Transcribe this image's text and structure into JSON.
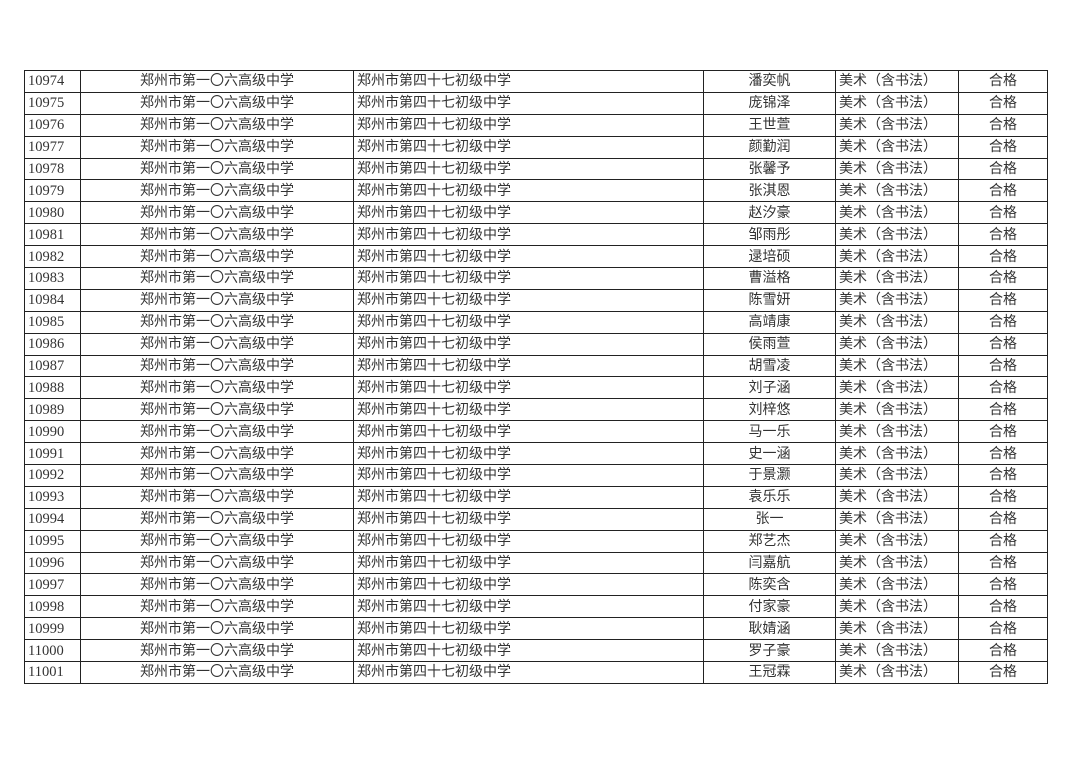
{
  "rows": [
    {
      "id": "10974",
      "school": "郑州市第一〇六高级中学",
      "origin": "郑州市第四十七初级中学",
      "name": "潘奕帆",
      "subject": "美术（含书法）",
      "result": "合格"
    },
    {
      "id": "10975",
      "school": "郑州市第一〇六高级中学",
      "origin": "郑州市第四十七初级中学",
      "name": "庞锦泽",
      "subject": "美术（含书法）",
      "result": "合格"
    },
    {
      "id": "10976",
      "school": "郑州市第一〇六高级中学",
      "origin": "郑州市第四十七初级中学",
      "name": "王世萱",
      "subject": "美术（含书法）",
      "result": "合格"
    },
    {
      "id": "10977",
      "school": "郑州市第一〇六高级中学",
      "origin": "郑州市第四十七初级中学",
      "name": "颜勤润",
      "subject": "美术（含书法）",
      "result": "合格"
    },
    {
      "id": "10978",
      "school": "郑州市第一〇六高级中学",
      "origin": "郑州市第四十七初级中学",
      "name": "张馨予",
      "subject": "美术（含书法）",
      "result": "合格"
    },
    {
      "id": "10979",
      "school": "郑州市第一〇六高级中学",
      "origin": "郑州市第四十七初级中学",
      "name": "张淇恩",
      "subject": "美术（含书法）",
      "result": "合格"
    },
    {
      "id": "10980",
      "school": "郑州市第一〇六高级中学",
      "origin": "郑州市第四十七初级中学",
      "name": "赵汐豪",
      "subject": "美术（含书法）",
      "result": "合格"
    },
    {
      "id": "10981",
      "school": "郑州市第一〇六高级中学",
      "origin": "郑州市第四十七初级中学",
      "name": "邹雨彤",
      "subject": "美术（含书法）",
      "result": "合格"
    },
    {
      "id": "10982",
      "school": "郑州市第一〇六高级中学",
      "origin": "郑州市第四十七初级中学",
      "name": "逯培硕",
      "subject": "美术（含书法）",
      "result": "合格"
    },
    {
      "id": "10983",
      "school": "郑州市第一〇六高级中学",
      "origin": "郑州市第四十七初级中学",
      "name": "曹溢格",
      "subject": "美术（含书法）",
      "result": "合格"
    },
    {
      "id": "10984",
      "school": "郑州市第一〇六高级中学",
      "origin": "郑州市第四十七初级中学",
      "name": "陈雪妍",
      "subject": "美术（含书法）",
      "result": "合格"
    },
    {
      "id": "10985",
      "school": "郑州市第一〇六高级中学",
      "origin": "郑州市第四十七初级中学",
      "name": "高靖康",
      "subject": "美术（含书法）",
      "result": "合格"
    },
    {
      "id": "10986",
      "school": "郑州市第一〇六高级中学",
      "origin": "郑州市第四十七初级中学",
      "name": "侯雨萱",
      "subject": "美术（含书法）",
      "result": "合格"
    },
    {
      "id": "10987",
      "school": "郑州市第一〇六高级中学",
      "origin": "郑州市第四十七初级中学",
      "name": "胡雪凌",
      "subject": "美术（含书法）",
      "result": "合格"
    },
    {
      "id": "10988",
      "school": "郑州市第一〇六高级中学",
      "origin": "郑州市第四十七初级中学",
      "name": "刘子涵",
      "subject": "美术（含书法）",
      "result": "合格"
    },
    {
      "id": "10989",
      "school": "郑州市第一〇六高级中学",
      "origin": "郑州市第四十七初级中学",
      "name": "刘梓悠",
      "subject": "美术（含书法）",
      "result": "合格"
    },
    {
      "id": "10990",
      "school": "郑州市第一〇六高级中学",
      "origin": "郑州市第四十七初级中学",
      "name": "马一乐",
      "subject": "美术（含书法）",
      "result": "合格"
    },
    {
      "id": "10991",
      "school": "郑州市第一〇六高级中学",
      "origin": "郑州市第四十七初级中学",
      "name": "史一涵",
      "subject": "美术（含书法）",
      "result": "合格"
    },
    {
      "id": "10992",
      "school": "郑州市第一〇六高级中学",
      "origin": "郑州市第四十七初级中学",
      "name": "于景灏",
      "subject": "美术（含书法）",
      "result": "合格"
    },
    {
      "id": "10993",
      "school": "郑州市第一〇六高级中学",
      "origin": "郑州市第四十七初级中学",
      "name": "袁乐乐",
      "subject": "美术（含书法）",
      "result": "合格"
    },
    {
      "id": "10994",
      "school": "郑州市第一〇六高级中学",
      "origin": "郑州市第四十七初级中学",
      "name": "张一",
      "subject": "美术（含书法）",
      "result": "合格"
    },
    {
      "id": "10995",
      "school": "郑州市第一〇六高级中学",
      "origin": "郑州市第四十七初级中学",
      "name": "郑艺杰",
      "subject": "美术（含书法）",
      "result": "合格"
    },
    {
      "id": "10996",
      "school": "郑州市第一〇六高级中学",
      "origin": "郑州市第四十七初级中学",
      "name": "闫嘉航",
      "subject": "美术（含书法）",
      "result": "合格"
    },
    {
      "id": "10997",
      "school": "郑州市第一〇六高级中学",
      "origin": "郑州市第四十七初级中学",
      "name": "陈奕含",
      "subject": "美术（含书法）",
      "result": "合格"
    },
    {
      "id": "10998",
      "school": "郑州市第一〇六高级中学",
      "origin": "郑州市第四十七初级中学",
      "name": "付家豪",
      "subject": "美术（含书法）",
      "result": "合格"
    },
    {
      "id": "10999",
      "school": "郑州市第一〇六高级中学",
      "origin": "郑州市第四十七初级中学",
      "name": "耿婧涵",
      "subject": "美术（含书法）",
      "result": "合格"
    },
    {
      "id": "11000",
      "school": "郑州市第一〇六高级中学",
      "origin": "郑州市第四十七初级中学",
      "name": "罗子豪",
      "subject": "美术（含书法）",
      "result": "合格"
    },
    {
      "id": "11001",
      "school": "郑州市第一〇六高级中学",
      "origin": "郑州市第四十七初级中学",
      "name": "王冠霖",
      "subject": "美术（含书法）",
      "result": "合格"
    }
  ]
}
